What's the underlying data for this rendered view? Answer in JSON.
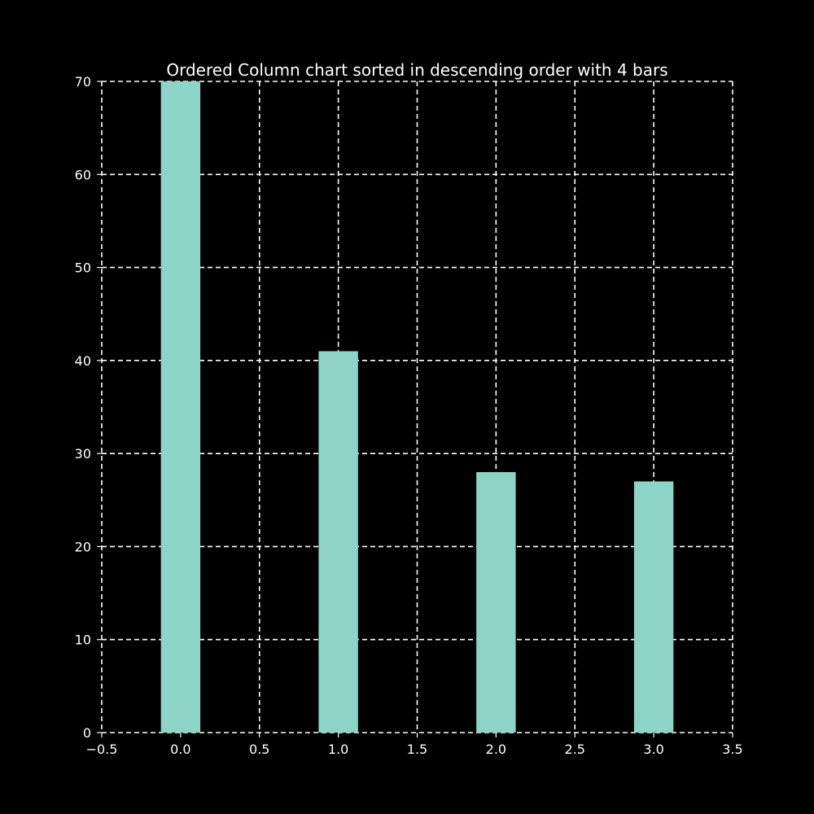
{
  "colors": {
    "background": "#000000",
    "bar": "#8dd3c7",
    "grid": "#ffffff",
    "text": "#ffffff"
  },
  "chart_data": {
    "type": "bar",
    "title": "Ordered Column chart sorted in descending order with 4 bars",
    "xlabel": "",
    "ylabel": "",
    "x": [
      0,
      1,
      2,
      3
    ],
    "values": [
      70,
      41,
      28,
      27
    ],
    "xlim": [
      -0.5,
      3.5
    ],
    "ylim": [
      0,
      70
    ],
    "xticks": [
      -0.5,
      0.0,
      0.5,
      1.0,
      1.5,
      2.0,
      2.5,
      3.0,
      3.5
    ],
    "xtick_labels": [
      "−0.5",
      "0.0",
      "0.5",
      "1.0",
      "1.5",
      "2.0",
      "2.5",
      "3.0",
      "3.5"
    ],
    "yticks": [
      0,
      10,
      20,
      30,
      40,
      50,
      60,
      70
    ],
    "ytick_labels": [
      "0",
      "10",
      "20",
      "30",
      "40",
      "50",
      "60",
      "70"
    ],
    "bar_width": 0.25,
    "grid": true,
    "grid_style": "dashed",
    "legend": "none"
  }
}
